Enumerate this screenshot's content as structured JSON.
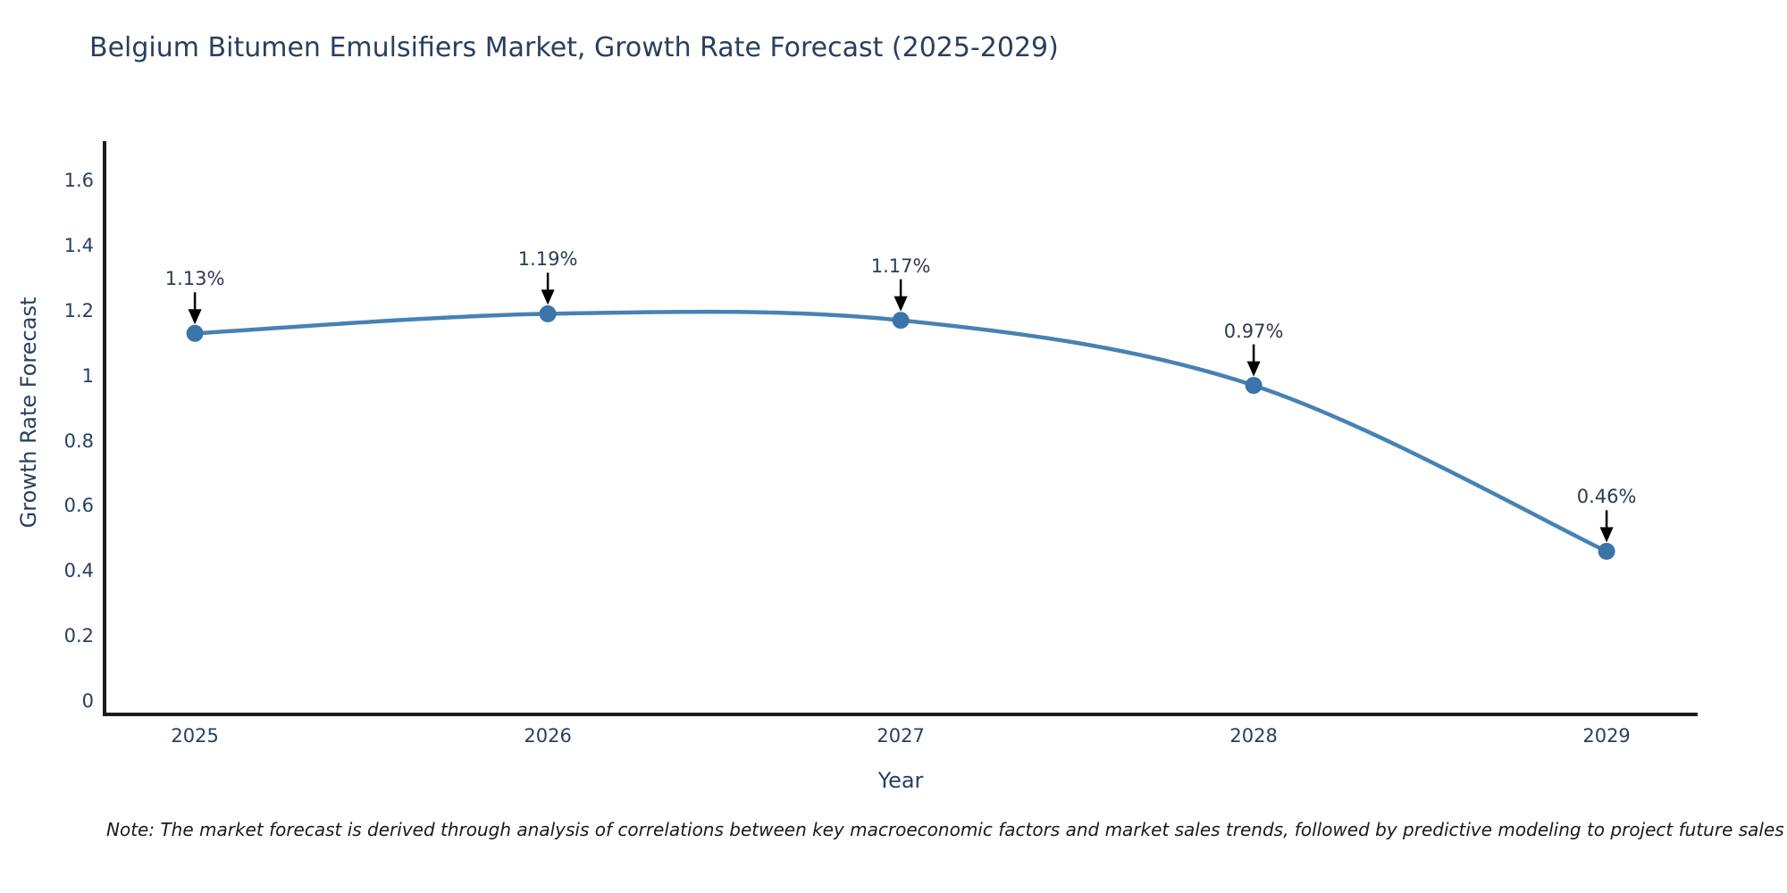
{
  "title": "Belgium Bitumen Emulsifiers Market, Growth Rate Forecast (2025-2029)",
  "note": "Note: The market forecast is derived through analysis of correlations between key macroeconomic factors and market sales trends, followed by predictive modeling to project future sales",
  "chart_data": {
    "type": "line",
    "title": "Belgium Bitumen Emulsifiers Market, Growth Rate Forecast (2025-2029)",
    "xlabel": "Year",
    "ylabel": "Growth Rate Forecast",
    "x": [
      2025,
      2026,
      2027,
      2028,
      2029
    ],
    "values": [
      1.13,
      1.19,
      1.17,
      0.97,
      0.46
    ],
    "point_labels": [
      "1.13%",
      "1.19%",
      "1.17%",
      "0.97%",
      "0.46%"
    ],
    "x_tick_labels": [
      "2025",
      "2026",
      "2027",
      "2028",
      "2029"
    ],
    "y_ticks": [
      0,
      0.2,
      0.4,
      0.6,
      0.8,
      1,
      1.2,
      1.4,
      1.6
    ],
    "y_tick_labels": [
      "0",
      "0.2",
      "0.4",
      "0.6",
      "0.8",
      "1",
      "1.2",
      "1.4",
      "1.6"
    ],
    "x_range": [
      2024.744,
      2029.258
    ],
    "y_range": [
      -0.0412,
      1.7209
    ],
    "grid": false,
    "legend_position": "none",
    "line_shape": "spline",
    "colors": {
      "line": "#4682b4",
      "marker": "#3a74a9",
      "axis": "#1c1c1c",
      "arrow": "#000000",
      "title_text": "#2a3f5f",
      "tick_text": "#2a3f5f",
      "annotation_text": "#2f3a4f",
      "background": "#ffffff"
    }
  }
}
